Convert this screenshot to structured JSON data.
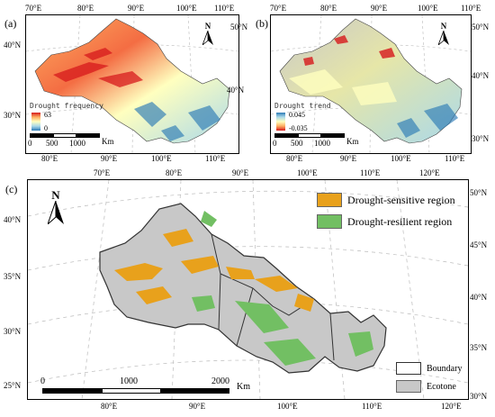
{
  "panel_a": {
    "label": "(a)",
    "legend_title": "Drought frequency",
    "legend_max": "63",
    "legend_min": "0",
    "scale_labels": [
      "0",
      "500",
      "1000"
    ],
    "scale_unit": "Km",
    "north": "N",
    "top_ticks": [
      "70°E",
      "80°E",
      "90°E",
      "100°E",
      "110°E"
    ],
    "bottom_ticks": [
      "80°E",
      "90°E",
      "100°E",
      "110°E"
    ],
    "left_ticks": [
      "40°N",
      "30°N"
    ],
    "right_ticks": [
      "50°N",
      "40°N"
    ]
  },
  "panel_b": {
    "label": "(b)",
    "legend_title": "Drought trend",
    "legend_max": "0.045",
    "legend_min": "-0.035",
    "scale_labels": [
      "0",
      "500",
      "1000"
    ],
    "scale_unit": "Km",
    "north": "N",
    "top_ticks": [
      "70°E",
      "80°E",
      "90°E",
      "100°E",
      "110°E"
    ],
    "bottom_ticks": [
      "80°E",
      "90°E",
      "100°E",
      "110°E"
    ],
    "right_ticks": [
      "50°N",
      "40°N",
      "30°N"
    ]
  },
  "panel_c": {
    "label": "(c)",
    "north": "N",
    "legend": [
      {
        "label": "Drought-sensitive region",
        "color": "#e8a11c"
      },
      {
        "label": "Drought-resilient region",
        "color": "#72bf63"
      }
    ],
    "legend2": [
      {
        "label": "Boundary",
        "color": "#ffffff"
      },
      {
        "label": "Ecotone",
        "color": "#c8c8c8"
      }
    ],
    "scale_labels": [
      "0",
      "1000",
      "2000"
    ],
    "scale_unit": "Km",
    "top_ticks": [
      "70°E",
      "80°E",
      "90°E",
      "100°E",
      "110°E",
      "120°E"
    ],
    "bottom_ticks": [
      "80°E",
      "90°E",
      "100°E",
      "110°E",
      "120°E"
    ],
    "left_ticks": [
      "40°N",
      "35°N",
      "30°N",
      "25°N"
    ],
    "right_ticks": [
      "50°N",
      "45°N",
      "40°N",
      "35°N",
      "30°N"
    ]
  },
  "colors": {
    "frequency_ramp": [
      "#2c7bb6",
      "#abd9e9",
      "#ffffbf",
      "#fdae61",
      "#d7191c"
    ],
    "trend_ramp": [
      "#d7191c",
      "#fdae61",
      "#ffffbf",
      "#abd9e9",
      "#2c7bb6"
    ],
    "ecotone_gray": "#c8c8c8",
    "sensitive": "#e8a11c",
    "resilient": "#72bf63"
  }
}
